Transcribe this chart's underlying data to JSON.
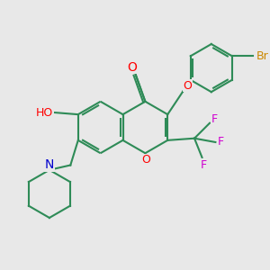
{
  "background_color": "#e8e8e8",
  "atom_colors": {
    "O": "#ff0000",
    "N": "#0000cd",
    "F": "#d000d0",
    "Br": "#cc8800",
    "C": "#2e8b57",
    "H": "#2e8b57"
  },
  "bond_color": "#2e8b57",
  "figsize": [
    3.0,
    3.0
  ],
  "dpi": 100
}
